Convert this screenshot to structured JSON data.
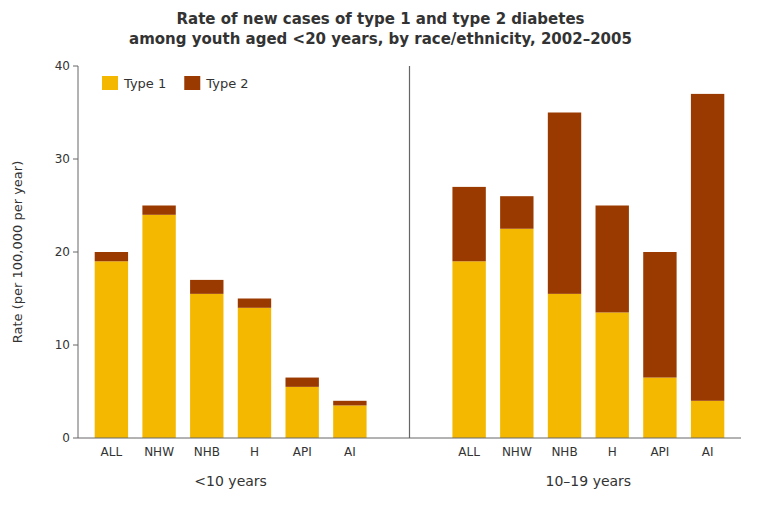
{
  "chart_data": {
    "type": "bar",
    "title": "Rate of new cases of type 1 and type 2 diabetes",
    "subtitle": "among youth aged <20 years, by race/ethnicity, 2002–2005",
    "categories": [
      "ALL",
      "NHW",
      "NHB",
      "H",
      "API",
      "AI",
      "ALL",
      "NHW",
      "NHB",
      "H",
      "API",
      "AI"
    ],
    "group_labels": [
      "<10 years",
      "10–19 years"
    ],
    "series": [
      {
        "name": "Type 1",
        "color": "#f5b800",
        "values": [
          19.0,
          24.0,
          15.5,
          14.0,
          5.5,
          3.5,
          19.0,
          22.5,
          15.5,
          13.5,
          6.5,
          4.0
        ]
      },
      {
        "name": "Type 2",
        "color": "#9b3a00",
        "values": [
          1.0,
          1.0,
          1.5,
          1.0,
          1.0,
          0.5,
          8.0,
          3.5,
          19.5,
          11.5,
          13.5,
          33.0
        ]
      }
    ],
    "ylabel": "Rate (per 100,000 per year)",
    "ylim": [
      0,
      40
    ],
    "yticks": [
      0,
      10,
      20,
      30,
      40
    ],
    "stacked": true,
    "legend": "upper left",
    "grid": false
  }
}
